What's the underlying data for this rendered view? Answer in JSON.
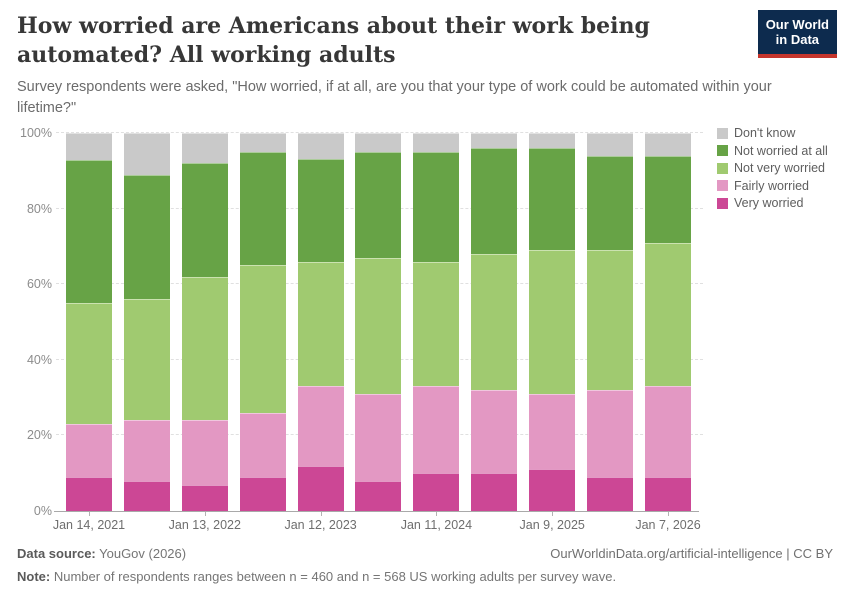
{
  "header": {
    "title": "How worried are Americans about their work being automated? All working adults",
    "subtitle": "Survey respondents were asked, \"How worried, if at all, are you that your type of work could be automated within your lifetime?\"",
    "logo_line1": "Our World",
    "logo_line2": "in Data"
  },
  "chart_data": {
    "type": "bar",
    "stacked": true,
    "unit": "%",
    "ylim": [
      0,
      100
    ],
    "grid": "dashed-horizontal",
    "legend_position": "right",
    "y_ticks": [
      "0%",
      "20%",
      "40%",
      "60%",
      "80%",
      "100%"
    ],
    "categories": [
      "Jan 14, 2021",
      "",
      "Jan 13, 2022",
      "",
      "Jan 12, 2023",
      "",
      "Jan 11, 2024",
      "",
      "Jan 9, 2025",
      "",
      "Jan 7, 2026"
    ],
    "x_tick_labels": [
      "Jan 14, 2021",
      "Jan 13, 2022",
      "Jan 12, 2023",
      "Jan 11, 2024",
      "Jan 9, 2025",
      "Jan 7, 2026"
    ],
    "series": [
      {
        "name": "Very worried",
        "color": "#cc4795",
        "values": [
          9,
          8,
          7,
          9,
          12,
          8,
          10,
          10,
          11,
          9,
          9
        ]
      },
      {
        "name": "Fairly worried",
        "color": "#e398c3",
        "values": [
          14,
          16,
          17,
          17,
          21,
          23,
          23,
          22,
          20,
          23,
          24
        ]
      },
      {
        "name": "Not very worried",
        "color": "#a0ca70",
        "values": [
          32,
          32,
          38,
          39,
          33,
          36,
          33,
          36,
          38,
          37,
          38
        ]
      },
      {
        "name": "Not worried at all",
        "color": "#67a346",
        "values": [
          38,
          33,
          30,
          30,
          27,
          28,
          29,
          28,
          27,
          25,
          23
        ]
      },
      {
        "name": "Don't know",
        "color": "#c9c9c9",
        "values": [
          7,
          11,
          8,
          5,
          7,
          5,
          5,
          4,
          4,
          6,
          6
        ]
      }
    ]
  },
  "footer": {
    "source_label": "Data source:",
    "source_value": " YouGov (2026)",
    "link": "OurWorldinData.org/artificial-intelligence | CC BY",
    "note_label": "Note:",
    "note_value": " Number of respondents ranges between n = 460 and n = 568 US working adults per survey wave."
  }
}
